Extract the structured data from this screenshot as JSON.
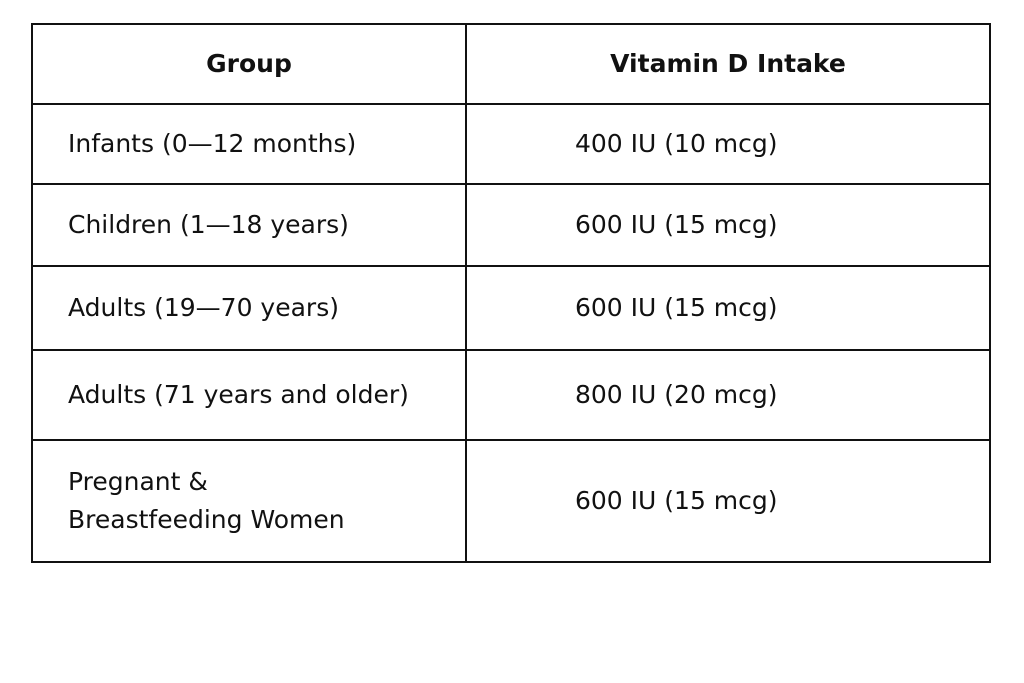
{
  "table": {
    "header": [
      "Group",
      "Vitamin D Intake"
    ],
    "rows": [
      [
        "Infants (0—12 months)",
        "400 IU (10 mcg)"
      ],
      [
        "Children (1—18 years)",
        "600 IU (15 mcg)"
      ],
      [
        "Adults (19—70 years)",
        "600 IU (15 mcg)"
      ],
      [
        "Adults (71 years and older)",
        "800 IU (20 mcg)"
      ],
      [
        "Pregnant &\nBreastfeeding Women",
        "600 IU (15 mcg)"
      ]
    ]
  }
}
